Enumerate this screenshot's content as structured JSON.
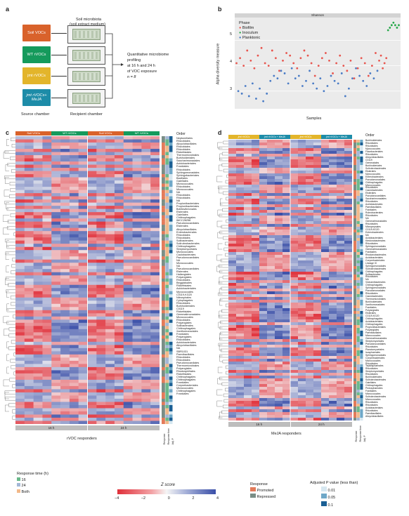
{
  "panel_a": {
    "label": "a",
    "soil_title_1": "Soil microbiota",
    "soil_title_2": "(soil extract medium)",
    "chambers": [
      {
        "label": "Soil VOCs",
        "color": "#d9622b"
      },
      {
        "label": "WT rVOCs",
        "color": "#159a5c"
      },
      {
        "label": "jmt rVOCs",
        "color": "#e3b52b"
      },
      {
        "label": "jmt rVOCs+ MeJA",
        "color": "#1d8ca8"
      }
    ],
    "outcome_1": "Quantitative microbiome",
    "outcome_2": "profiling",
    "outcome_3": "at 16 h and 24 h",
    "outcome_4": "of VOC exposure",
    "outcome_5": "n = 8",
    "source_label": "Source chamber",
    "recipient_label": "Recipient chamber"
  },
  "panel_b": {
    "label": "b",
    "strip": "Shannon",
    "legend_title": "Phase",
    "legend": [
      {
        "name": "Biofilm",
        "color": "#e8554e"
      },
      {
        "name": "Inoculum",
        "color": "#27a84a"
      },
      {
        "name": "Planktonic",
        "color": "#4a7cc6"
      }
    ],
    "ylabel": "Alpha diversity measure",
    "xlabel": "Samples",
    "yticks": [
      "5",
      "4",
      "3"
    ]
  },
  "chart_data": {
    "type": "scatter",
    "strip": "Shannon",
    "ylabel": "Alpha diversity measure",
    "xlabel": "Samples",
    "ylim": [
      2.3,
      5.9
    ],
    "series": [
      {
        "name": "Biofilm",
        "color": "#e8554e",
        "values": [
          4.1,
          4.3,
          4.0,
          4.6,
          4.2,
          3.9,
          4.4,
          4.7,
          4.1,
          4.0,
          4.6,
          4.3,
          3.8,
          4.2,
          4.5,
          4.4,
          4.1,
          3.9,
          4.3,
          4.6,
          4.4,
          4.1,
          3.6,
          4.0,
          4.3,
          4.5,
          4.2,
          3.7,
          4.1,
          4.4,
          4.0,
          3.8,
          4.2,
          3.5,
          3.9,
          4.3,
          4.1,
          3.6,
          4.0,
          4.5,
          4.2,
          4.4,
          3.9,
          4.1,
          4.3
        ]
      },
      {
        "name": "Inoculum",
        "color": "#27a84a",
        "values": [
          5.4,
          5.5,
          5.6,
          5.7,
          5.6,
          5.5,
          5.6
        ]
      },
      {
        "name": "Planktonic",
        "color": "#4a7cc6",
        "values": [
          3.0,
          2.9,
          3.2,
          2.8,
          3.3,
          2.7,
          3.1,
          2.6,
          2.9,
          3.4,
          3.6,
          3.5,
          3.8,
          3.7,
          3.3,
          3.9,
          3.5,
          3.6,
          3.2,
          3.4,
          3.8,
          3.3,
          3.1,
          3.5,
          3.0,
          3.2,
          3.6,
          3.4,
          3.3,
          3.7,
          2.8,
          3.1,
          3.5,
          3.9,
          3.6,
          3.4,
          3.2,
          3.7,
          3.5,
          3.8
        ]
      }
    ]
  },
  "panel_c": {
    "label": "c",
    "groups": [
      {
        "label": "Soil VOCs",
        "color": "#d9622b"
      },
      {
        "label": "WT rVOCs",
        "color": "#159a5c"
      },
      {
        "label": "Soil VOCs",
        "color": "#d9622b"
      },
      {
        "label": "WT rVOCs",
        "color": "#159a5c"
      }
    ],
    "order_title": "Order",
    "times": [
      "16 h",
      "24 h"
    ],
    "footer": "rVOC responders",
    "orders": [
      "Neptunellales",
      "Rhizobiales",
      "Alicyclobacillales",
      "Rhizobiales",
      "Rhizobiales",
      "Rickettsiales",
      "Thermomicrobiales",
      "Burkholderiales",
      "Saccharimonadales",
      "Acidobacteriales",
      "Frankiales",
      "Rhizobiales",
      "Sphingomonadales",
      "Sphingobacteriales",
      "Bacillales",
      "Gaiellales",
      "Micrococcales",
      "Rhizobiales",
      "Micrococcales",
      "NA",
      "Rhizobiales",
      "Rhizobiales",
      "NA",
      "Propionibacteriales",
      "Propionibacteriales",
      "Bdellovibrionales",
      "Elsterales",
      "Gaiellales",
      "Chitinophagales",
      "IMCC26256",
      "Pseudonocardiales",
      "Elsterales",
      "Alicyclobacillales",
      "Enterobacterales",
      "Rhizobiales",
      "Rhizobiales",
      "Solibacterales",
      "Solirubrobacterales",
      "Chitinophagales",
      "Streptomycetales",
      "Micrococcales",
      "Caulobacterales",
      "Pseudonocardiales",
      "NA",
      "Micrococcales",
      "NA",
      "Pseudonocardiales",
      "Elsterales",
      "Haliangiales",
      "Polyangiales",
      "Rhizobiales",
      "Beggiatoales",
      "Rickettsiales",
      "Acidobacteriales",
      "Myxococcales",
      "C0119-KG20",
      "Nitrospirales",
      "Cytophagales",
      "Rhizobiales",
      "Burkholderiales",
      "C0119",
      "Rickettsiales",
      "Gemmatimonadales",
      "Micrococcales",
      "Rhizobiales",
      "Polyangiales",
      "Solibacterales",
      "Chitinophagales",
      "Xanthomonadales",
      "Frankiales",
      "Polyangiales",
      "Rhizobiales",
      "Acidobacteriales",
      "Alicyclobacillales",
      "NA",
      "SBR1031",
      "Paenibacillales",
      "Rhizobiales",
      "Rhizobiales",
      "Pseudonocardiales",
      "Thermomicrobiales",
      "Polyangiales",
      "Rhodospirillales",
      "Rickettsiales",
      "Chitinophagales",
      "Chitinophagales",
      "Frankiales",
      "Corynebacteriales",
      "Micrococcales",
      "Chitinophagales",
      "Frankiales"
    ],
    "annot_labels": [
      "Response",
      "Response time",
      "Adj. P"
    ]
  },
  "panel_d": {
    "label": "d",
    "groups": [
      {
        "label": "jmt rVOCs",
        "color": "#e3b52b"
      },
      {
        "label": "jmt rVOCs + MeJA",
        "color": "#1d8ca8"
      },
      {
        "label": "jmt rVOCs",
        "color": "#e3b52b"
      },
      {
        "label": "jmt rVOCs + MeJA",
        "color": "#1d8ca8"
      }
    ],
    "order_title": "Order",
    "times": [
      "16 h",
      "24 h"
    ],
    "footer": "MeJA responders",
    "orders": [
      "Burkholderiales",
      "Rhizobiales",
      "Rhizobiales",
      "Myxococcales",
      "Flavobacteriales",
      "Rhizobiales",
      "Alicyclobacillales",
      "C0119",
      "Gemmatales",
      "Burkholderiales",
      "Solirubrobacterales",
      "Elsterales",
      "Myxococcales",
      "Enterobacterales",
      "Pseudomonadales",
      "Chitinophagales",
      "Micrococcales",
      "Rhizobiales",
      "Caulobacterales",
      "Elsterales",
      "Pseudonocardiales",
      "Saccharimonadales",
      "Rhizobiales",
      "Acetobacterales",
      "Paenibacillales",
      "Frankiales",
      "Rubrobacterales",
      "Rhizobiales",
      "NA",
      "Gemmatimonadales",
      "Rhizobiales",
      "Micropepsales",
      "C0119-KG20",
      "Enterobacterales",
      "NA",
      "Acidobacteriales",
      "Ktedonobacterales",
      "Rhizobiales",
      "Sphingomonadales",
      "Gemmatimonadales",
      "Frankiales",
      "Rhodanobacterales",
      "Acidobacteriales",
      "Corynebacteriales",
      "Lineage III",
      "Sphingomonadales",
      "Solirubrobacterales",
      "Chitinophagales",
      "Solibacterales",
      "Rhizobiales",
      "NA",
      "Vicinamibacterales",
      "Chitinophagales",
      "Sphingomonadales",
      "Pseudomonadales",
      "Rhizobiales",
      "Caulobacterales",
      "Thermomicrobiales",
      "Burkholderiales",
      "Xanthomonadales",
      "Frankiales",
      "Polyangiales",
      "Elsterales",
      "C0119-KG20",
      "Chitinophagales",
      "Acidobacteriales",
      "Chitinophagales",
      "Propionibacteriales",
      "Polyangiales",
      "Paenibacillales",
      "Micrococcales",
      "Gemmatimonadales",
      "Streptomycetales",
      "Pseudonocardiales",
      "Rhizobiales",
      "Planctomycetales",
      "Isosphaerales",
      "Sphingomonadales",
      "Corynebacteriales",
      "Micrococcales",
      "Rhizobiales",
      "Tepidisphaerales",
      "Rhizobiales",
      "Streptomycetales",
      "Rhizobiales",
      "Burkholderiales",
      "Solirubrobacterales",
      "Gaiellales",
      "Chitinophagales",
      "Pedosphaerales",
      "Frankiales",
      "Micrococcales",
      "Solirubrobacterales",
      "Micrococcales",
      "Rhizobiales",
      "Rhizobiales",
      "Acidobacteriales",
      "Rhizobiales",
      "Paenibacillales",
      "Alicyclobacillales"
    ],
    "annot_labels": [
      "Response",
      "Response time",
      "Adj. P"
    ]
  },
  "legend_bottom": {
    "response_time_title": "Response time (h)",
    "response_time": [
      {
        "label": "16",
        "color": "#6ab98a"
      },
      {
        "label": "24",
        "color": "#a3b7d6"
      },
      {
        "label": "Both",
        "color": "#f2b98a"
      }
    ],
    "zscore_title": "Z score",
    "zscore_ticks": [
      "−4",
      "−2",
      "0",
      "2",
      "4"
    ],
    "zscore_colors": {
      "low": "#e0303a",
      "mid": "#f5f5f5",
      "high": "#3a4fa8"
    },
    "response_title": "Response",
    "response": [
      {
        "label": "Promoted",
        "color": "#e37b5a"
      },
      {
        "label": "Repressed",
        "color": "#7a8e86"
      }
    ],
    "padj_title": "Adjusted P value (less than)",
    "padj": [
      {
        "label": "0.01",
        "color": "#d6e7f0"
      },
      {
        "label": "0.05",
        "color": "#6fa8c8"
      },
      {
        "label": "0.1",
        "color": "#1a5f94"
      }
    ]
  }
}
